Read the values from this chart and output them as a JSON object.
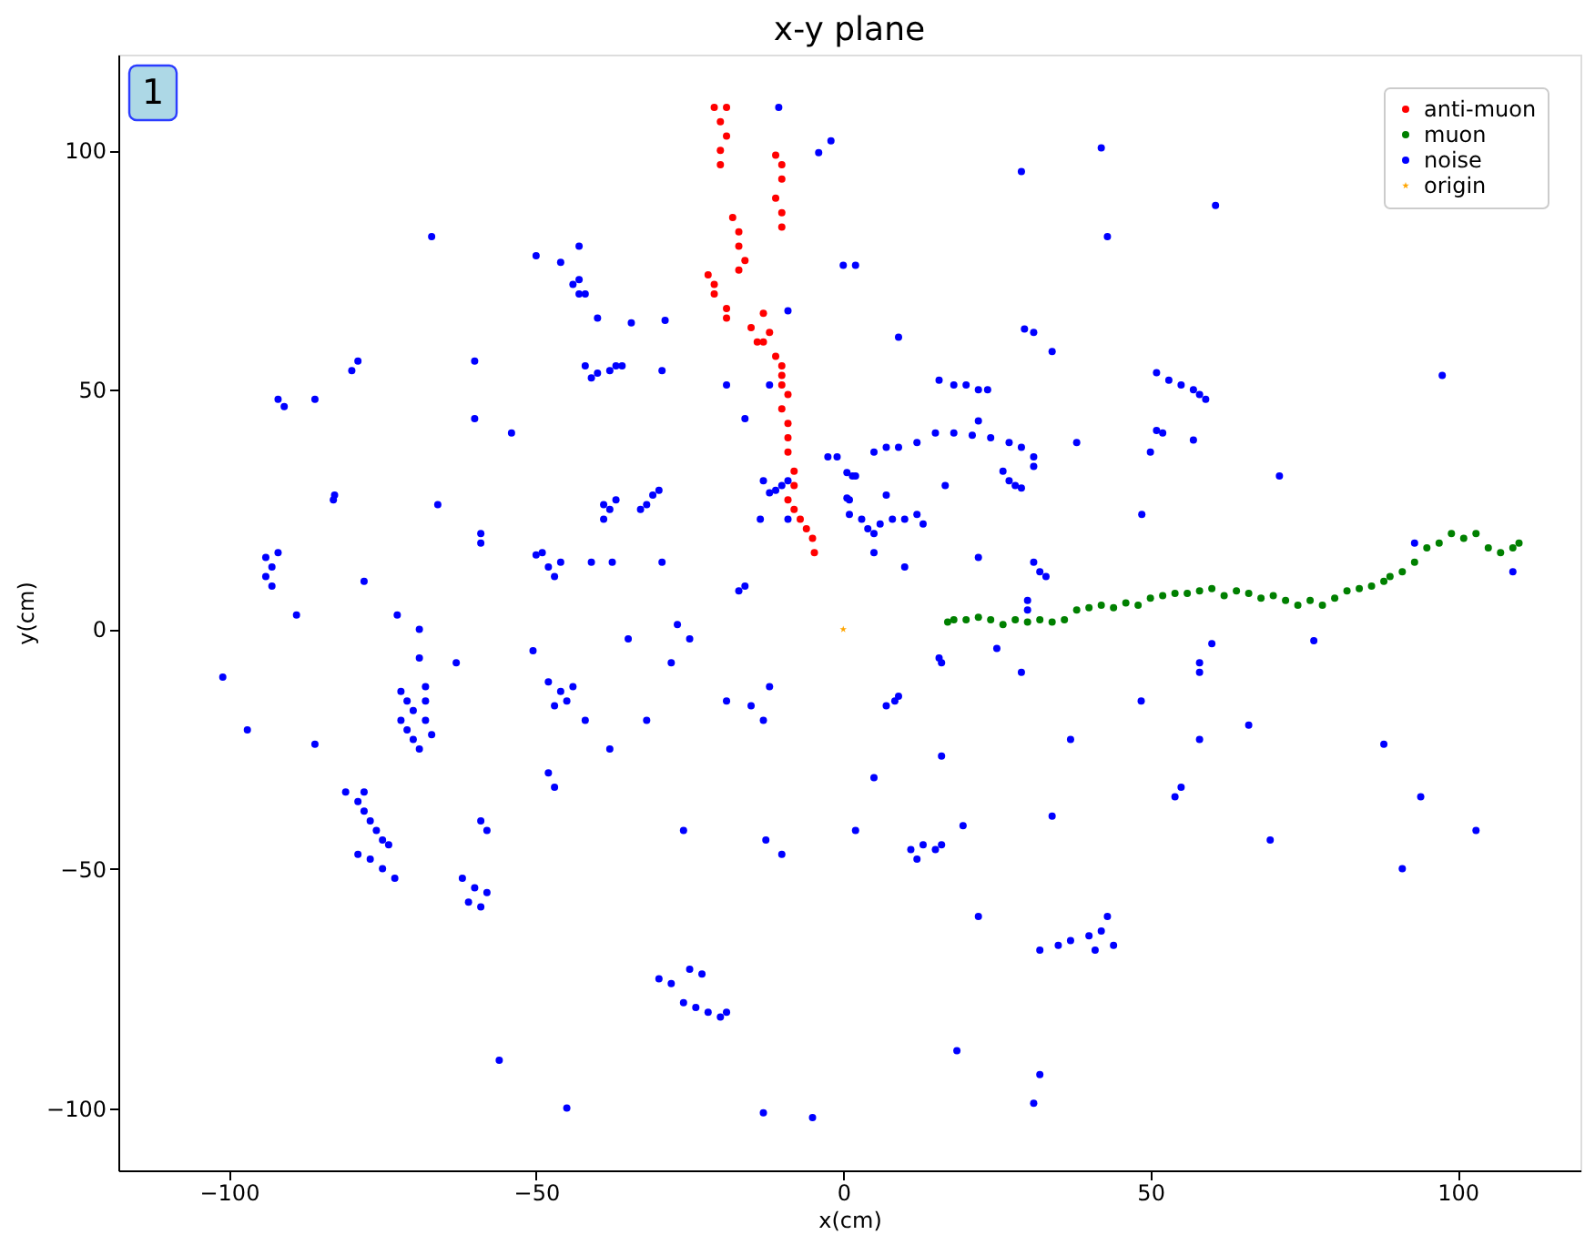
{
  "chart_data": {
    "type": "scatter",
    "title": "x-y plane",
    "xlabel": "x(cm)",
    "ylabel": "y(cm)",
    "annotations": [
      "1"
    ],
    "xlim": [
      -118,
      120
    ],
    "ylim": [
      -113,
      120
    ],
    "xticks": [
      -100,
      -50,
      0,
      50,
      100
    ],
    "yticks": [
      -100,
      -50,
      0,
      50,
      100
    ],
    "grid": false,
    "legend": "top right",
    "marker": "circle",
    "series": [
      {
        "name": "anti-muon",
        "color": "#ff0000",
        "x": [
          -21,
          -19,
          -20,
          -19,
          -20,
          -20,
          -11,
          -10,
          -10,
          -11,
          -10,
          -10,
          -18,
          -17,
          -17,
          -16,
          -17,
          -22,
          -21,
          -21,
          -19,
          -19,
          -15,
          -13,
          -11,
          -10,
          -10,
          -10,
          -9,
          -10,
          -9,
          -9,
          -9,
          -8,
          -8,
          -9,
          -8,
          -7,
          -6,
          -5,
          -4.7,
          -13,
          -12,
          -14
        ],
        "values": [
          109,
          109,
          106,
          103,
          100,
          97,
          99,
          97,
          94,
          90,
          87,
          84,
          86,
          83,
          80,
          77,
          75,
          74,
          72,
          70,
          67,
          65,
          63,
          60,
          57,
          55,
          53,
          51,
          49,
          46,
          43,
          40,
          37,
          33,
          30,
          27,
          25,
          23,
          21,
          19,
          16,
          66,
          62,
          60
        ]
      },
      {
        "name": "muon",
        "color": "#008000",
        "x": [
          17,
          18,
          20,
          22,
          24,
          26,
          28,
          30,
          32,
          34,
          36,
          38,
          40,
          42,
          44,
          46,
          48,
          50,
          52,
          54,
          56,
          58,
          60,
          62,
          64,
          66,
          68,
          70,
          72,
          74,
          76,
          78,
          80,
          82,
          84,
          86,
          88,
          89,
          91,
          93,
          95,
          97,
          99,
          101,
          103,
          105,
          107,
          109,
          110
        ],
        "values": [
          1.5,
          2,
          2,
          2.5,
          2,
          1,
          2,
          1.5,
          2,
          1.5,
          2,
          4,
          4.5,
          5,
          4.5,
          5.5,
          5,
          6.5,
          7,
          7.5,
          7.5,
          8,
          8.5,
          7,
          8,
          7.5,
          6.5,
          7,
          6,
          5,
          6,
          5,
          6.5,
          8,
          8.5,
          9,
          10,
          11,
          12,
          14,
          17,
          18,
          20,
          19,
          20,
          17,
          16,
          17,
          18
        ]
      },
      {
        "name": "noise",
        "color": "#0000ff",
        "x": [
          -101,
          -97,
          -89,
          -86,
          -72.6,
          -69,
          -69,
          -63,
          -50.5,
          -72,
          -71,
          -70,
          -72,
          -71,
          -70,
          -68,
          -68,
          -68,
          -67,
          -69,
          -81,
          -79,
          -78,
          -77,
          -76,
          -75,
          -74,
          -78,
          -79,
          -77,
          -75,
          -73,
          -62,
          -60,
          -58,
          -61,
          -59,
          -59,
          -58,
          -56,
          -45,
          -48,
          -46,
          -45,
          -47,
          -44,
          -42,
          -38,
          -48,
          -47,
          -32,
          -35,
          -27,
          -25,
          -28,
          -19,
          -15,
          -13,
          -12,
          -26,
          -12.6,
          -10,
          -30,
          -28,
          -25,
          -23,
          -26,
          -24,
          -22,
          -20,
          -19,
          -13,
          -5,
          25,
          15.6,
          16,
          8.4,
          7,
          9,
          29,
          16,
          5,
          2,
          11,
          13,
          15,
          16,
          12,
          19.5,
          34,
          22,
          32,
          35,
          37,
          40,
          42,
          43,
          44,
          41,
          18.5,
          32,
          31,
          37,
          48.5,
          58,
          58,
          60,
          58,
          66,
          55,
          54,
          69.5,
          76.6,
          88,
          94,
          91,
          103,
          42,
          29,
          60.6,
          43,
          0,
          2,
          9,
          29.5,
          31,
          34,
          97.5,
          51,
          53,
          55,
          57,
          58,
          59,
          15.6,
          18,
          20,
          22,
          23.5,
          22,
          51,
          52,
          57,
          38,
          50,
          71,
          48.6,
          5,
          7,
          9,
          12,
          15,
          18,
          21,
          24,
          27,
          29,
          31,
          26,
          27,
          28,
          29,
          31,
          16.6,
          2,
          1.5,
          1,
          7,
          1,
          3,
          4,
          5,
          6,
          8,
          10,
          12,
          13,
          5,
          10,
          22,
          31,
          32,
          33,
          30,
          30,
          93,
          109,
          -10.5,
          -4,
          -2,
          -67,
          -50,
          -46,
          -43,
          -44,
          -43,
          -43,
          -42,
          -40,
          -34.5,
          -29,
          -9,
          -42,
          -40,
          -38,
          -37,
          -36,
          -41,
          -29.5,
          -19,
          -12,
          -16,
          -60,
          -60,
          -54,
          -92,
          -91,
          -86,
          -80,
          -79,
          -83,
          -82.8,
          -66,
          -59,
          -59,
          -78,
          -94,
          -93,
          -94,
          -93,
          -92,
          -50,
          -49,
          -48,
          -47,
          -46,
          -41,
          -37.6,
          -29.5,
          -39,
          -38,
          -37,
          -39,
          -33,
          -32,
          -31,
          -30,
          -16,
          -17,
          -13.5,
          -9,
          -13,
          -11,
          -10,
          -12,
          -9,
          -2.5,
          -1,
          0.6,
          0.6
        ],
        "values": [
          -10,
          -21,
          3,
          -24,
          3,
          0,
          -6,
          -7,
          -4.5,
          -13,
          -15,
          -17,
          -19,
          -21,
          -23,
          -12,
          -15,
          -19,
          -22,
          -25,
          -34,
          -36,
          -38,
          -40,
          -42,
          -44,
          -45,
          -34,
          -47,
          -48,
          -50,
          -52,
          -52,
          -54,
          -55,
          -57,
          -58,
          -40,
          -42,
          -90,
          -100,
          -11,
          -13,
          -15,
          -16,
          -12,
          -19,
          -25,
          -30,
          -33,
          -19,
          -2,
          1,
          -2,
          -7,
          -15,
          -16,
          -19,
          -12,
          -42,
          -44,
          -47,
          -73,
          -74,
          -71,
          -72,
          -78,
          -79,
          -80,
          -81,
          -80,
          -101,
          -102,
          -4,
          -6,
          -7,
          -15,
          -16,
          -14,
          -9,
          -26.5,
          -31,
          -42,
          -46,
          -45,
          -46,
          -45,
          -48,
          -41,
          -39,
          -60,
          -67,
          -66,
          -65,
          -64,
          -63,
          -60,
          -66,
          -67,
          -88,
          -93,
          -99,
          -23,
          -15,
          -7,
          -9,
          -3,
          -23,
          -20,
          -33,
          -35,
          -44,
          -2.4,
          -24,
          -35,
          -50,
          -42,
          100.5,
          95.6,
          88.5,
          82,
          76,
          76,
          61,
          62.7,
          62,
          58,
          53,
          53.6,
          52,
          51,
          50,
          49,
          48,
          52,
          51,
          51,
          50,
          50,
          43.5,
          41.5,
          41,
          39.5,
          39,
          37,
          32,
          24,
          37,
          38,
          38,
          39,
          41,
          41,
          40.5,
          40,
          39,
          38,
          36,
          33,
          31,
          30,
          29.5,
          34,
          30,
          32,
          32,
          27,
          28,
          24,
          23,
          21,
          20,
          22,
          23,
          23,
          24,
          22,
          16,
          13,
          15,
          14,
          12,
          11,
          6,
          4,
          18,
          12,
          109,
          99.5,
          102,
          82,
          78,
          76.6,
          80,
          72,
          70,
          73,
          70,
          65,
          64,
          64.5,
          66.5,
          55,
          53.5,
          54,
          55,
          55,
          52.5,
          54,
          51,
          51,
          44,
          56,
          44,
          41,
          48,
          46.5,
          48,
          54,
          56,
          27,
          28,
          26,
          18,
          20,
          10,
          15,
          13,
          11,
          9,
          16,
          15.5,
          16,
          13,
          11,
          14,
          14,
          14,
          14,
          23,
          25,
          27,
          26,
          25,
          26,
          28,
          29,
          9,
          8,
          23,
          23,
          31,
          29,
          30,
          28.5,
          31,
          36,
          36,
          32.7,
          27.4
        ]
      },
      {
        "name": "origin",
        "color": "#ffa500",
        "marker": "star",
        "x": [
          0
        ],
        "values": [
          0
        ]
      }
    ]
  }
}
